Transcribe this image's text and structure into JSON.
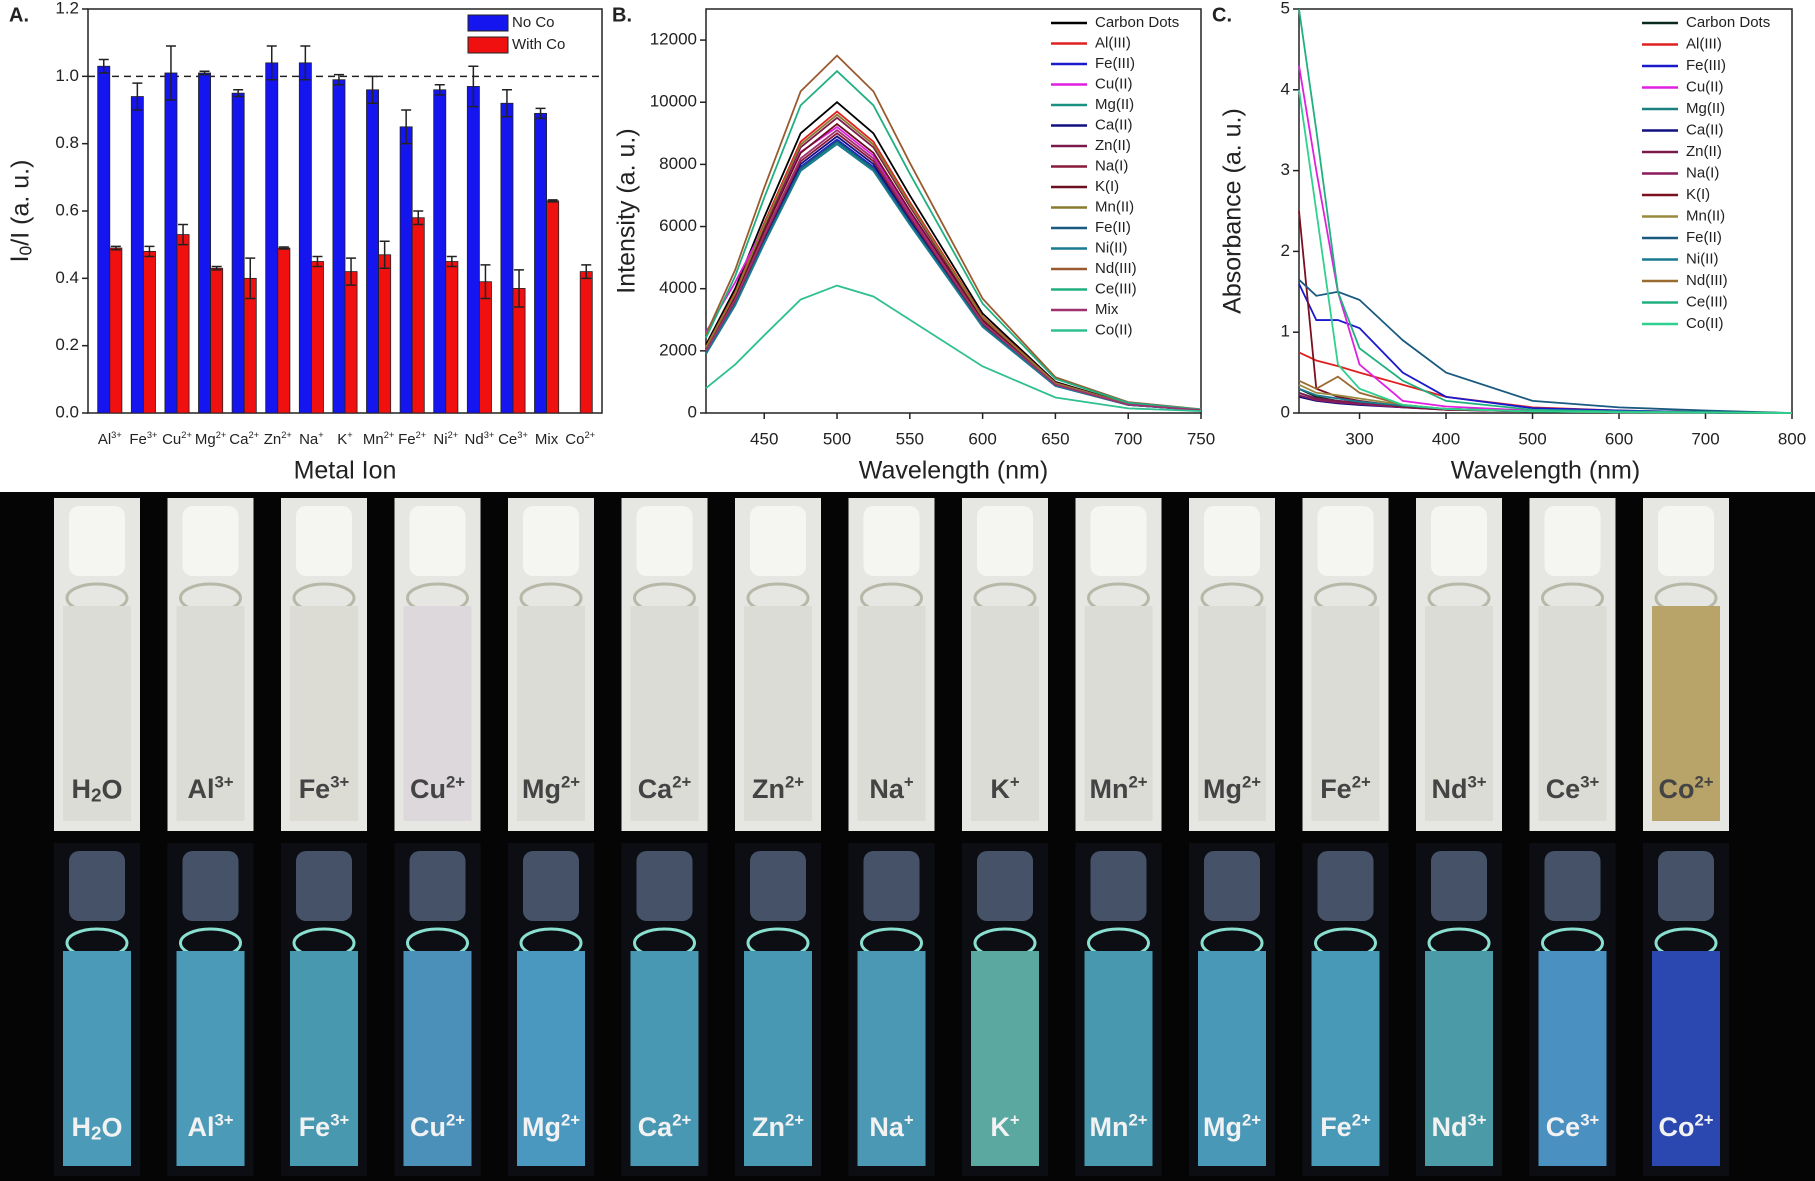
{
  "chart_data": [
    {
      "type": "bar",
      "panel_label": "A.",
      "xlabel": "Metal Ion",
      "ylabel": {
        "text": "I",
        "sub": "0",
        "rest": "/I (a. u.)"
      },
      "categories": [
        {
          "text": "Al",
          "sup": "3+"
        },
        {
          "text": "Fe",
          "sup": "3+"
        },
        {
          "text": "Cu",
          "sup": "2+"
        },
        {
          "text": "Mg",
          "sup": "2+"
        },
        {
          "text": "Ca",
          "sup": "2+"
        },
        {
          "text": "Zn",
          "sup": "2+"
        },
        {
          "text": "Na",
          "sup": "+"
        },
        {
          "text": "K",
          "sup": "+"
        },
        {
          "text": "Mn",
          "sup": "2+"
        },
        {
          "text": "Fe",
          "sup": "2+"
        },
        {
          "text": "Ni",
          "sup": "2+"
        },
        {
          "text": "Nd",
          "sup": "3+"
        },
        {
          "text": "Ce",
          "sup": "3+"
        },
        {
          "text": "Mix"
        },
        {
          "text": "Co",
          "sup": "2+"
        }
      ],
      "series": [
        {
          "name": "No Co",
          "color": "#1515f0",
          "values": [
            1.03,
            0.94,
            1.01,
            1.01,
            0.95,
            1.04,
            1.04,
            0.99,
            0.96,
            0.85,
            0.96,
            0.97,
            0.92,
            0.89,
            null
          ],
          "errors": [
            0.02,
            0.04,
            0.08,
            0.005,
            0.01,
            0.05,
            0.05,
            0.015,
            0.04,
            0.05,
            0.015,
            0.06,
            0.04,
            0.015,
            null
          ]
        },
        {
          "name": "With Co",
          "color": "#f01010",
          "values": [
            0.49,
            0.48,
            0.53,
            0.43,
            0.4,
            0.49,
            0.45,
            0.42,
            0.47,
            0.58,
            0.45,
            0.39,
            0.37,
            0.63,
            0.42
          ],
          "errors": [
            0.005,
            0.015,
            0.03,
            0.005,
            0.06,
            0.003,
            0.015,
            0.04,
            0.04,
            0.02,
            0.015,
            0.05,
            0.055,
            0.003,
            0.02
          ]
        }
      ],
      "ylim": [
        0,
        1.2
      ],
      "yticks": [
        {
          "value": 0,
          "label": "0.0"
        },
        0.2,
        0.4,
        0.6,
        0.8,
        {
          "value": 1,
          "label": "1.0"
        },
        1.2
      ],
      "reference_line": 1,
      "legend": "upper right"
    },
    {
      "type": "line",
      "panel_label": "B.",
      "xlabel": "Wavelength (nm)",
      "ylabel": "Intensity (a. u.)",
      "x": [
        410,
        430,
        450,
        475,
        500,
        525,
        550,
        600,
        650,
        700,
        750
      ],
      "series": [
        {
          "name": "Carbon Dots",
          "color": "#000000",
          "values": [
            2200,
            4000,
            6300,
            9000,
            10000,
            9000,
            7000,
            3200,
            1000,
            300,
            100
          ]
        },
        {
          "name": "Al(III)",
          "color": "#e02020",
          "values": [
            2130,
            3880,
            6110,
            8730,
            9700,
            8730,
            6790,
            3100,
            970,
            290,
            100
          ]
        },
        {
          "name": "Fe(III)",
          "color": "#1a1acc",
          "values": [
            1940,
            3520,
            5540,
            7920,
            8800,
            7920,
            6160,
            2820,
            880,
            260,
            90
          ]
        },
        {
          "name": "Cu(II)",
          "color": "#e020e0",
          "values": [
            2600,
            4200,
            6000,
            8400,
            9200,
            8280,
            6440,
            2940,
            920,
            280,
            90
          ]
        },
        {
          "name": "Mg(II)",
          "color": "#1a9080",
          "values": [
            1910,
            3480,
            5480,
            7830,
            8700,
            7830,
            6090,
            2780,
            870,
            260,
            90
          ]
        },
        {
          "name": "Ca(II)",
          "color": "#101080",
          "values": [
            1960,
            3560,
            5610,
            8010,
            8900,
            8010,
            6230,
            2850,
            890,
            270,
            90
          ]
        },
        {
          "name": "Zn(II)",
          "color": "#7a1a4a",
          "values": [
            2090,
            3800,
            5990,
            8550,
            9500,
            8550,
            6650,
            3040,
            950,
            290,
            100
          ]
        },
        {
          "name": "Na(I)",
          "color": "#8a1a3a",
          "values": [
            1980,
            3600,
            5670,
            8100,
            9000,
            8100,
            6300,
            2880,
            900,
            270,
            90
          ]
        },
        {
          "name": "K(I)",
          "color": "#6a1020",
          "values": [
            2050,
            3720,
            5860,
            8370,
            9300,
            8370,
            6510,
            2980,
            930,
            280,
            90
          ]
        },
        {
          "name": "Mn(II)",
          "color": "#8a7a30",
          "values": [
            2110,
            3840,
            6050,
            8640,
            9600,
            8640,
            6720,
            3070,
            960,
            290,
            100
          ]
        },
        {
          "name": "Fe(II)",
          "color": "#1a5a80",
          "values": [
            1930,
            3500,
            5510,
            7880,
            8750,
            7880,
            6130,
            2800,
            880,
            260,
            90
          ]
        },
        {
          "name": "Ni(II)",
          "color": "#1a7a90",
          "values": [
            1900,
            3460,
            5450,
            7790,
            8650,
            7790,
            6060,
            2770,
            870,
            260,
            90
          ]
        },
        {
          "name": "Nd(III)",
          "color": "#9a5a30",
          "values": [
            2530,
            4600,
            7250,
            10350,
            11500,
            10350,
            8050,
            3680,
            1150,
            350,
            120
          ]
        },
        {
          "name": "Ce(III)",
          "color": "#20b080",
          "values": [
            2420,
            4400,
            6930,
            9900,
            11000,
            9900,
            7700,
            3520,
            1100,
            330,
            110
          ]
        },
        {
          "name": "Mix",
          "color": "#a03070",
          "values": [
            2000,
            3640,
            5730,
            8190,
            9100,
            8190,
            6370,
            2910,
            910,
            270,
            90
          ]
        },
        {
          "name": "Co(II)",
          "color": "#30c090",
          "values": [
            800,
            1560,
            2500,
            3650,
            4100,
            3750,
            3000,
            1500,
            500,
            150,
            60
          ]
        }
      ],
      "xlim": [
        410,
        750
      ],
      "xticks": [
        450,
        500,
        550,
        600,
        650,
        700,
        750
      ],
      "ylim": [
        0,
        13000
      ],
      "yticks": [
        0,
        2000,
        4000,
        6000,
        8000,
        10000,
        12000
      ],
      "legend": "upper right"
    },
    {
      "type": "line",
      "panel_label": "C.",
      "xlabel": "Wavelength (nm)",
      "ylabel": "Absorbance (a. u.)",
      "x": [
        230,
        250,
        275,
        300,
        350,
        400,
        500,
        600,
        700,
        800
      ],
      "series": [
        {
          "name": "Carbon Dots",
          "color": "#0a2a20",
          "values": [
            0.3,
            0.2,
            0.15,
            0.12,
            0.08,
            0.05,
            0.02,
            0.01,
            0.005,
            0
          ]
        },
        {
          "name": "Al(III)",
          "color": "#e02020",
          "values": [
            0.75,
            0.65,
            0.58,
            0.5,
            0.35,
            0.2,
            0.07,
            0.03,
            0.01,
            0
          ]
        },
        {
          "name": "Fe(III)",
          "color": "#1a1acc",
          "values": [
            1.6,
            1.15,
            1.15,
            1.05,
            0.5,
            0.2,
            0.06,
            0.03,
            0.01,
            0
          ]
        },
        {
          "name": "Cu(II)",
          "color": "#e020e0",
          "values": [
            4.3,
            3.0,
            1.5,
            0.6,
            0.15,
            0.08,
            0.03,
            0.01,
            0.005,
            0
          ]
        },
        {
          "name": "Mg(II)",
          "color": "#1a8080",
          "values": [
            0.25,
            0.18,
            0.15,
            0.12,
            0.08,
            0.05,
            0.02,
            0.01,
            0.005,
            0
          ]
        },
        {
          "name": "Ca(II)",
          "color": "#101080",
          "values": [
            0.2,
            0.15,
            0.12,
            0.1,
            0.07,
            0.04,
            0.02,
            0.01,
            0.005,
            0
          ]
        },
        {
          "name": "Zn(II)",
          "color": "#7a1a4a",
          "values": [
            0.25,
            0.18,
            0.15,
            0.13,
            0.08,
            0.05,
            0.02,
            0.01,
            0.005,
            0
          ]
        },
        {
          "name": "Na(I)",
          "color": "#8a1a5a",
          "values": [
            0.22,
            0.16,
            0.13,
            0.11,
            0.07,
            0.04,
            0.02,
            0.01,
            0.005,
            0
          ]
        },
        {
          "name": "K(I)",
          "color": "#7a1020",
          "values": [
            2.5,
            0.3,
            0.2,
            0.15,
            0.08,
            0.04,
            0.02,
            0.01,
            0.005,
            0
          ]
        },
        {
          "name": "Mn(II)",
          "color": "#9a8a40",
          "values": [
            0.35,
            0.25,
            0.22,
            0.18,
            0.1,
            0.05,
            0.02,
            0.01,
            0.005,
            0
          ]
        },
        {
          "name": "Fe(II)",
          "color": "#1a5a80",
          "values": [
            1.65,
            1.45,
            1.5,
            1.4,
            0.9,
            0.5,
            0.15,
            0.07,
            0.03,
            0
          ]
        },
        {
          "name": "Ni(II)",
          "color": "#1a7a90",
          "values": [
            0.3,
            0.22,
            0.18,
            0.14,
            0.09,
            0.05,
            0.02,
            0.01,
            0.005,
            0
          ]
        },
        {
          "name": "Nd(III)",
          "color": "#9a6a30",
          "values": [
            0.4,
            0.3,
            0.45,
            0.25,
            0.1,
            0.05,
            0.02,
            0.01,
            0.005,
            0
          ]
        },
        {
          "name": "Ce(III)",
          "color": "#20b080",
          "values": [
            5.0,
            3.5,
            1.5,
            0.8,
            0.4,
            0.15,
            0.04,
            0.02,
            0.01,
            0
          ]
        },
        {
          "name": "Co(II)",
          "color": "#30d090",
          "values": [
            4.0,
            2.5,
            0.6,
            0.3,
            0.1,
            0.05,
            0.02,
            0.01,
            0.005,
            0
          ]
        }
      ],
      "xlim": [
        230,
        800
      ],
      "xticks": [
        300,
        400,
        500,
        600,
        700,
        800
      ],
      "ylim": [
        0,
        5
      ],
      "yticks": [
        0,
        1,
        2,
        3,
        4,
        5
      ],
      "legend": "upper right"
    }
  ],
  "photos": {
    "top_row": {
      "labels": [
        {
          "text": "H",
          "sub": "2",
          "rest": "O"
        },
        {
          "text": "Al",
          "sup": "3+"
        },
        {
          "text": "Fe",
          "sup": "3+"
        },
        {
          "text": "Cu",
          "sup": "2+"
        },
        {
          "text": "Mg",
          "sup": "2+"
        },
        {
          "text": "Ca",
          "sup": "2+"
        },
        {
          "text": "Zn",
          "sup": "2+"
        },
        {
          "text": "Na",
          "sup": "+"
        },
        {
          "text": "K",
          "sup": "+"
        },
        {
          "text": "Mn",
          "sup": "2+"
        },
        {
          "text": "Mg",
          "sup": "2+"
        },
        {
          "text": "Fe",
          "sup": "2+"
        },
        {
          "text": "Nd",
          "sup": "3+"
        },
        {
          "text": "Ce",
          "sup": "3+"
        },
        {
          "text": "Co",
          "sup": "2+"
        }
      ],
      "colors": [
        "#dcdcd6",
        "#dcdcd6",
        "#dcdcd4",
        "#dcd8dc",
        "#dcdcd6",
        "#dcdcd6",
        "#dcdcd6",
        "#dcdcd6",
        "#dcdcd6",
        "#dcdcd6",
        "#dcdcd6",
        "#dcdcd6",
        "#dcdcd6",
        "#dcdcd6",
        "#b8a468"
      ]
    },
    "bottom_row": {
      "labels": [
        {
          "text": "H",
          "sub": "2",
          "rest": "O"
        },
        {
          "text": "Al",
          "sup": "3+"
        },
        {
          "text": "Fe",
          "sup": "3+"
        },
        {
          "text": "Cu",
          "sup": "2+"
        },
        {
          "text": "Mg",
          "sup": "2+"
        },
        {
          "text": "Ca",
          "sup": "2+"
        },
        {
          "text": "Zn",
          "sup": "2+"
        },
        {
          "text": "Na",
          "sup": "+"
        },
        {
          "text": "K",
          "sup": "+"
        },
        {
          "text": "Mn",
          "sup": "2+"
        },
        {
          "text": "Mg",
          "sup": "2+"
        },
        {
          "text": "Fe",
          "sup": "2+"
        },
        {
          "text": "Nd",
          "sup": "3+"
        },
        {
          "text": "Ce",
          "sup": "3+"
        },
        {
          "text": "Co",
          "sup": "2+"
        }
      ],
      "colors": [
        "#4a9ab8",
        "#4a9ab8",
        "#4898b0",
        "#4a90b8",
        "#4a98c0",
        "#4898b4",
        "#4898b4",
        "#4a98b4",
        "#5aa8a0",
        "#4898b0",
        "#4a98b8",
        "#4898b8",
        "#4a9aa8",
        "#4a90c0",
        "#2a48b0"
      ]
    }
  }
}
